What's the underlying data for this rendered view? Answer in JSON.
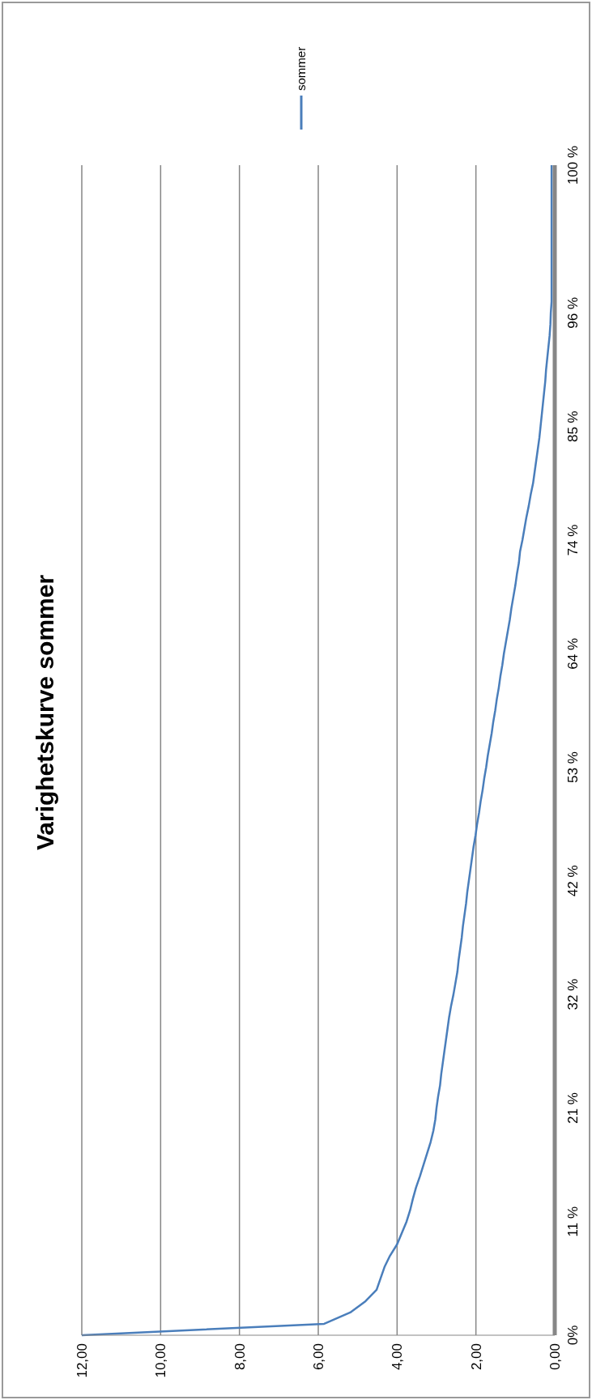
{
  "chart_data": {
    "type": "line",
    "title": "Varighetskurve sommer",
    "orientation": "horizontal",
    "categories": [
      "100 %",
      null,
      null,
      null,
      null,
      null,
      null,
      null,
      null,
      null,
      null,
      null,
      null,
      "96 %",
      null,
      null,
      null,
      null,
      null,
      null,
      null,
      null,
      null,
      "85 %",
      null,
      null,
      null,
      null,
      null,
      null,
      null,
      null,
      null,
      "74 %",
      null,
      null,
      null,
      null,
      null,
      null,
      null,
      null,
      null,
      "64 %",
      null,
      null,
      null,
      null,
      null,
      null,
      null,
      null,
      null,
      "53 %",
      null,
      null,
      null,
      null,
      null,
      null,
      null,
      null,
      null,
      "42 %",
      null,
      null,
      null,
      null,
      null,
      null,
      null,
      null,
      null,
      "32 %",
      null,
      null,
      null,
      null,
      null,
      null,
      null,
      null,
      null,
      "21 %",
      null,
      null,
      null,
      null,
      null,
      null,
      null,
      null,
      null,
      "11 %",
      null,
      null,
      null,
      null,
      null,
      null,
      null,
      null,
      null,
      "0%"
    ],
    "series": [
      {
        "name": "sommer",
        "color": "#4a7ebb",
        "values": [
          0.08,
          0.08,
          0.08,
          0.08,
          0.08,
          0.08,
          0.08,
          0.08,
          0.08,
          0.08,
          0.08,
          0.08,
          0.08,
          0.1,
          0.11,
          0.13,
          0.16,
          0.19,
          0.22,
          0.24,
          0.27,
          0.3,
          0.33,
          0.36,
          0.39,
          0.43,
          0.47,
          0.51,
          0.55,
          0.61,
          0.66,
          0.72,
          0.77,
          0.82,
          0.88,
          0.91,
          0.96,
          1.0,
          1.05,
          1.1,
          1.14,
          1.19,
          1.24,
          1.29,
          1.33,
          1.38,
          1.42,
          1.47,
          1.51,
          1.56,
          1.6,
          1.65,
          1.7,
          1.74,
          1.79,
          1.83,
          1.88,
          1.92,
          1.97,
          2.01,
          2.06,
          2.1,
          2.14,
          2.18,
          2.22,
          2.25,
          2.29,
          2.33,
          2.36,
          2.4,
          2.44,
          2.47,
          2.52,
          2.57,
          2.63,
          2.68,
          2.72,
          2.76,
          2.8,
          2.84,
          2.88,
          2.91,
          2.96,
          3.0,
          3.03,
          3.08,
          3.15,
          3.24,
          3.33,
          3.42,
          3.52,
          3.6,
          3.67,
          3.76,
          3.88,
          4.0,
          4.18,
          4.32,
          4.42,
          4.52,
          4.8,
          5.19,
          5.85,
          12.0
        ]
      }
    ],
    "xlim": [
      12,
      0
    ],
    "xticks": [
      {
        "value": 12,
        "label": "12,00"
      },
      {
        "value": 10,
        "label": "10,00"
      },
      {
        "value": 8,
        "label": "8,00"
      },
      {
        "value": 6,
        "label": "6,00"
      },
      {
        "value": 4,
        "label": "4,00"
      },
      {
        "value": 2,
        "label": "2,00"
      },
      {
        "value": 0,
        "label": "0,00"
      }
    ],
    "grid": "x",
    "legend": "top",
    "marker": "none",
    "line_style": "solid"
  }
}
